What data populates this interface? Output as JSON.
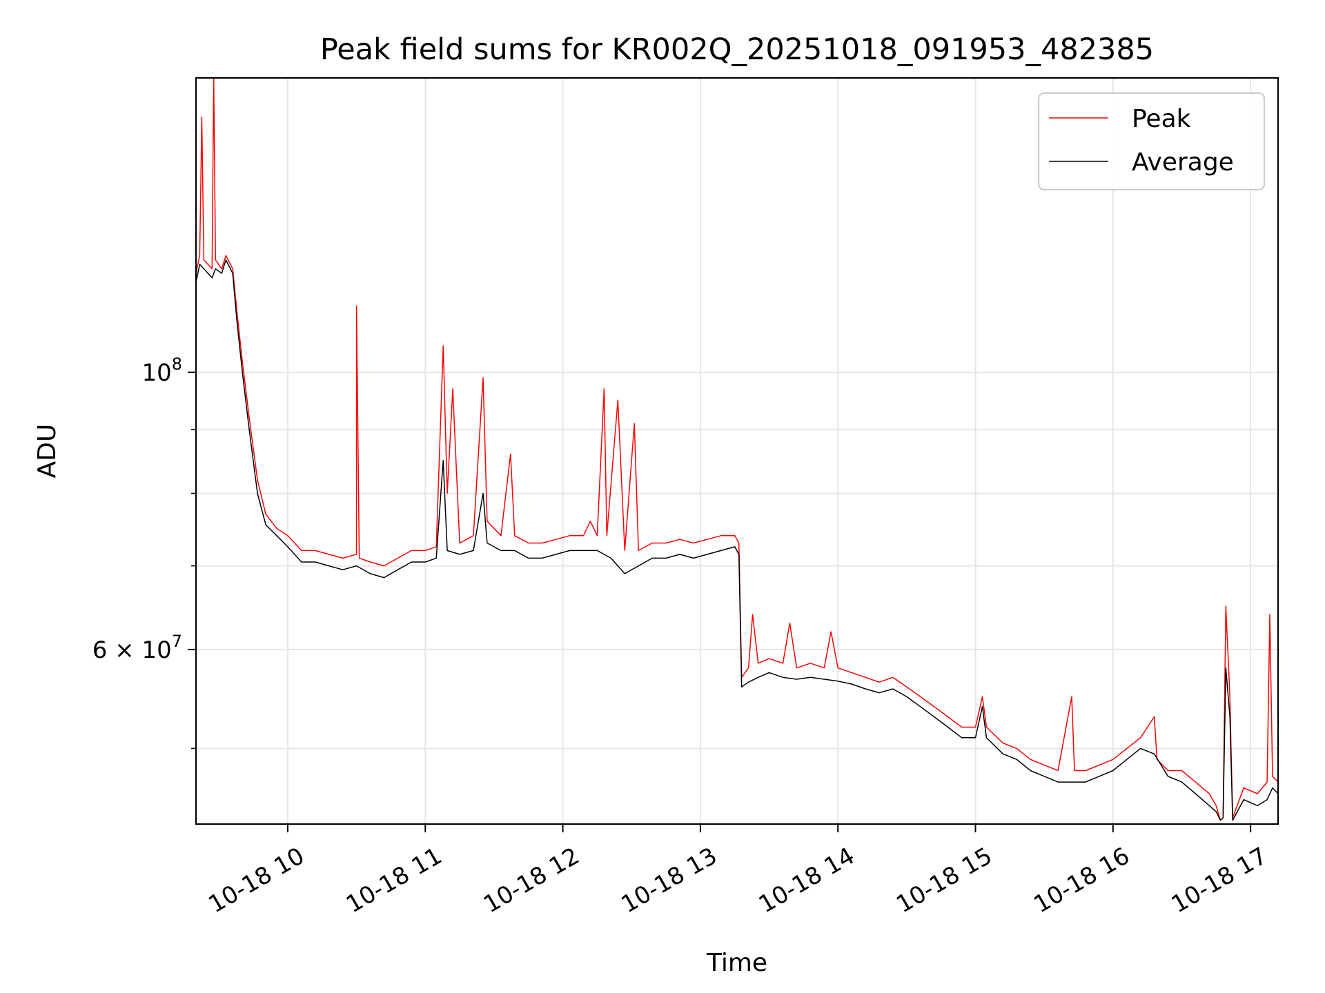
{
  "chart_data": {
    "type": "line",
    "title": "Peak field sums for KR002Q_20251018_091953_482385",
    "xlabel": "Time",
    "ylabel": "ADU",
    "yscale": "log",
    "xlim_hours": [
      9.333,
      17.2
    ],
    "ylim": [
      43500000,
      172000000
    ],
    "grid": true,
    "legend_position": "top-right",
    "x_ticks": [
      {
        "hour": 10,
        "label": "10-18 10"
      },
      {
        "hour": 11,
        "label": "10-18 11"
      },
      {
        "hour": 12,
        "label": "10-18 12"
      },
      {
        "hour": 13,
        "label": "10-18 13"
      },
      {
        "hour": 14,
        "label": "10-18 14"
      },
      {
        "hour": 15,
        "label": "10-18 15"
      },
      {
        "hour": 16,
        "label": "10-18 16"
      },
      {
        "hour": 17,
        "label": "10-18 17"
      }
    ],
    "y_major_ticks": [
      {
        "value": 100000000,
        "base": "10",
        "exp": "8"
      },
      {
        "value": 60000000,
        "base": "6 × 10",
        "exp": "7"
      }
    ],
    "y_minor_ticks": [
      50000000,
      70000000,
      80000000,
      90000000
    ],
    "series": [
      {
        "name": "Peak",
        "color": "#ff0000",
        "points": [
          [
            9.333,
            120000000
          ],
          [
            9.36,
            124000000
          ],
          [
            9.375,
            160000000
          ],
          [
            9.39,
            123000000
          ],
          [
            9.42,
            122000000
          ],
          [
            9.45,
            121000000
          ],
          [
            9.462,
            172000000
          ],
          [
            9.475,
            123000000
          ],
          [
            9.52,
            121000000
          ],
          [
            9.55,
            124000000
          ],
          [
            9.6,
            121000000
          ],
          [
            9.63,
            112000000
          ],
          [
            9.67,
            102000000
          ],
          [
            9.72,
            92000000
          ],
          [
            9.78,
            82000000
          ],
          [
            9.84,
            77000000
          ],
          [
            9.92,
            75000000
          ],
          [
            10.0,
            74000000
          ],
          [
            10.05,
            73000000
          ],
          [
            10.1,
            72000000
          ],
          [
            10.2,
            72000000
          ],
          [
            10.3,
            71500000
          ],
          [
            10.4,
            71000000
          ],
          [
            10.5,
            71500000
          ],
          [
            10.5,
            113000000
          ],
          [
            10.52,
            71000000
          ],
          [
            10.6,
            70500000
          ],
          [
            10.7,
            70000000
          ],
          [
            10.8,
            71000000
          ],
          [
            10.9,
            72000000
          ],
          [
            11.0,
            72000000
          ],
          [
            11.08,
            72500000
          ],
          [
            11.13,
            105000000
          ],
          [
            11.16,
            80000000
          ],
          [
            11.2,
            97000000
          ],
          [
            11.25,
            73000000
          ],
          [
            11.35,
            74000000
          ],
          [
            11.42,
            99000000
          ],
          [
            11.45,
            76000000
          ],
          [
            11.55,
            74000000
          ],
          [
            11.62,
            86000000
          ],
          [
            11.65,
            74000000
          ],
          [
            11.75,
            73000000
          ],
          [
            11.85,
            73000000
          ],
          [
            11.95,
            73500000
          ],
          [
            12.05,
            74000000
          ],
          [
            12.15,
            74000000
          ],
          [
            12.2,
            76000000
          ],
          [
            12.25,
            74000000
          ],
          [
            12.3,
            97000000
          ],
          [
            12.32,
            74000000
          ],
          [
            12.4,
            95000000
          ],
          [
            12.45,
            72000000
          ],
          [
            12.52,
            91000000
          ],
          [
            12.55,
            72000000
          ],
          [
            12.65,
            73000000
          ],
          [
            12.75,
            73000000
          ],
          [
            12.85,
            73500000
          ],
          [
            12.95,
            73000000
          ],
          [
            13.05,
            73500000
          ],
          [
            13.15,
            74000000
          ],
          [
            13.25,
            74000000
          ],
          [
            13.28,
            73000000
          ],
          [
            13.3,
            57000000
          ],
          [
            13.35,
            58000000
          ],
          [
            13.38,
            64000000
          ],
          [
            13.42,
            58500000
          ],
          [
            13.5,
            59000000
          ],
          [
            13.6,
            58500000
          ],
          [
            13.65,
            63000000
          ],
          [
            13.7,
            58000000
          ],
          [
            13.8,
            58500000
          ],
          [
            13.9,
            58000000
          ],
          [
            13.95,
            62000000
          ],
          [
            14.0,
            58000000
          ],
          [
            14.1,
            57500000
          ],
          [
            14.2,
            57000000
          ],
          [
            14.3,
            56500000
          ],
          [
            14.4,
            57000000
          ],
          [
            14.5,
            56000000
          ],
          [
            14.6,
            55000000
          ],
          [
            14.7,
            54000000
          ],
          [
            14.8,
            53000000
          ],
          [
            14.9,
            52000000
          ],
          [
            15.0,
            52000000
          ],
          [
            15.05,
            55000000
          ],
          [
            15.08,
            52000000
          ],
          [
            15.2,
            50500000
          ],
          [
            15.3,
            50000000
          ],
          [
            15.4,
            49000000
          ],
          [
            15.5,
            48500000
          ],
          [
            15.6,
            48000000
          ],
          [
            15.7,
            55000000
          ],
          [
            15.72,
            48000000
          ],
          [
            15.8,
            48000000
          ],
          [
            15.9,
            48500000
          ],
          [
            16.0,
            49000000
          ],
          [
            16.1,
            50000000
          ],
          [
            16.2,
            51000000
          ],
          [
            16.3,
            53000000
          ],
          [
            16.32,
            49000000
          ],
          [
            16.4,
            48000000
          ],
          [
            16.5,
            48000000
          ],
          [
            16.6,
            47000000
          ],
          [
            16.7,
            46000000
          ],
          [
            16.75,
            45000000
          ],
          [
            16.78,
            43800000
          ],
          [
            16.8,
            44000000
          ],
          [
            16.82,
            65000000
          ],
          [
            16.85,
            55000000
          ],
          [
            16.87,
            44000000
          ],
          [
            16.95,
            46500000
          ],
          [
            17.05,
            46000000
          ],
          [
            17.12,
            47000000
          ],
          [
            17.14,
            64000000
          ],
          [
            17.16,
            47500000
          ],
          [
            17.2,
            47000000
          ]
        ]
      },
      {
        "name": "Average",
        "color": "#000000",
        "points": [
          [
            9.333,
            118000000
          ],
          [
            9.36,
            122000000
          ],
          [
            9.39,
            121000000
          ],
          [
            9.42,
            120000000
          ],
          [
            9.45,
            119000000
          ],
          [
            9.475,
            121000000
          ],
          [
            9.52,
            120000000
          ],
          [
            9.55,
            123000000
          ],
          [
            9.6,
            120000000
          ],
          [
            9.63,
            110000000
          ],
          [
            9.67,
            100000000
          ],
          [
            9.72,
            90000000
          ],
          [
            9.78,
            80000000
          ],
          [
            9.84,
            75500000
          ],
          [
            9.92,
            74000000
          ],
          [
            10.0,
            72500000
          ],
          [
            10.05,
            71500000
          ],
          [
            10.1,
            70500000
          ],
          [
            10.2,
            70500000
          ],
          [
            10.3,
            70000000
          ],
          [
            10.4,
            69500000
          ],
          [
            10.5,
            70000000
          ],
          [
            10.6,
            69000000
          ],
          [
            10.7,
            68500000
          ],
          [
            10.8,
            69500000
          ],
          [
            10.9,
            70500000
          ],
          [
            11.0,
            70500000
          ],
          [
            11.08,
            71000000
          ],
          [
            11.13,
            85000000
          ],
          [
            11.16,
            72000000
          ],
          [
            11.25,
            71500000
          ],
          [
            11.35,
            72000000
          ],
          [
            11.42,
            80000000
          ],
          [
            11.45,
            73000000
          ],
          [
            11.55,
            72000000
          ],
          [
            11.65,
            72000000
          ],
          [
            11.75,
            71000000
          ],
          [
            11.85,
            71000000
          ],
          [
            11.95,
            71500000
          ],
          [
            12.05,
            72000000
          ],
          [
            12.15,
            72000000
          ],
          [
            12.25,
            72000000
          ],
          [
            12.35,
            71000000
          ],
          [
            12.45,
            69000000
          ],
          [
            12.55,
            70000000
          ],
          [
            12.65,
            71000000
          ],
          [
            12.75,
            71000000
          ],
          [
            12.85,
            71500000
          ],
          [
            12.95,
            71000000
          ],
          [
            13.05,
            71500000
          ],
          [
            13.15,
            72000000
          ],
          [
            13.25,
            72500000
          ],
          [
            13.28,
            71500000
          ],
          [
            13.3,
            56000000
          ],
          [
            13.35,
            56500000
          ],
          [
            13.42,
            57000000
          ],
          [
            13.5,
            57500000
          ],
          [
            13.6,
            57000000
          ],
          [
            13.7,
            56800000
          ],
          [
            13.8,
            57000000
          ],
          [
            13.9,
            56800000
          ],
          [
            14.0,
            56600000
          ],
          [
            14.1,
            56300000
          ],
          [
            14.2,
            55800000
          ],
          [
            14.3,
            55400000
          ],
          [
            14.4,
            55800000
          ],
          [
            14.5,
            55000000
          ],
          [
            14.6,
            54000000
          ],
          [
            14.7,
            53000000
          ],
          [
            14.8,
            52000000
          ],
          [
            14.9,
            51000000
          ],
          [
            15.0,
            51000000
          ],
          [
            15.05,
            54000000
          ],
          [
            15.08,
            51000000
          ],
          [
            15.2,
            49500000
          ],
          [
            15.3,
            49000000
          ],
          [
            15.4,
            48000000
          ],
          [
            15.5,
            47500000
          ],
          [
            15.6,
            47000000
          ],
          [
            15.7,
            47000000
          ],
          [
            15.8,
            47000000
          ],
          [
            15.9,
            47500000
          ],
          [
            16.0,
            48000000
          ],
          [
            16.1,
            49000000
          ],
          [
            16.2,
            50000000
          ],
          [
            16.3,
            49500000
          ],
          [
            16.4,
            47500000
          ],
          [
            16.5,
            47000000
          ],
          [
            16.6,
            46000000
          ],
          [
            16.7,
            45000000
          ],
          [
            16.75,
            44500000
          ],
          [
            16.78,
            43800000
          ],
          [
            16.8,
            44000000
          ],
          [
            16.82,
            58000000
          ],
          [
            16.85,
            53000000
          ],
          [
            16.87,
            43800000
          ],
          [
            16.95,
            45500000
          ],
          [
            17.05,
            45000000
          ],
          [
            17.12,
            45500000
          ],
          [
            17.16,
            46500000
          ],
          [
            17.2,
            46000000
          ]
        ]
      }
    ]
  }
}
